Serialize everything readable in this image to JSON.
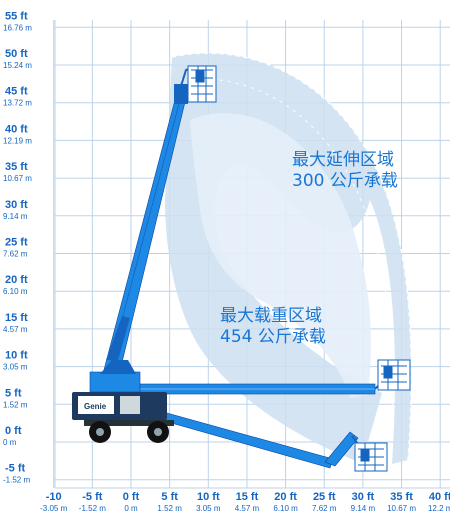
{
  "y_labels": [
    {
      "ft": "55 ft",
      "m": "16.76 m",
      "value": 55
    },
    {
      "ft": "50 ft",
      "m": "15.24 m",
      "value": 50
    },
    {
      "ft": "45 ft",
      "m": "13.72 m",
      "value": 45
    },
    {
      "ft": "40 ft",
      "m": "12.19 m",
      "value": 40
    },
    {
      "ft": "35 ft",
      "m": "10.67 m",
      "value": 35
    },
    {
      "ft": "30 ft",
      "m": "9.14 m",
      "value": 30
    },
    {
      "ft": "25 ft",
      "m": "7.62 m",
      "value": 25
    },
    {
      "ft": "20 ft",
      "m": "6.10 m",
      "value": 20
    },
    {
      "ft": "15 ft",
      "m": "4.57 m",
      "value": 15
    },
    {
      "ft": "10 ft",
      "m": "3.05 m",
      "value": 10
    },
    {
      "ft": "5 ft",
      "m": "1.52 m",
      "value": 5
    },
    {
      "ft": "0 ft",
      "m": "0 m",
      "value": 0
    },
    {
      "ft": "-5 ft",
      "m": "-1.52 m",
      "value": -5
    }
  ],
  "x_labels": [
    {
      "ft": "-10",
      "m": "-3.05 m",
      "value": -10
    },
    {
      "ft": "-5 ft",
      "m": "-1.52 m",
      "value": -5
    },
    {
      "ft": "0 ft",
      "m": "0 m",
      "value": 0
    },
    {
      "ft": "5 ft",
      "m": "1.52 m",
      "value": 5
    },
    {
      "ft": "10 ft",
      "m": "3.05 m",
      "value": 10
    },
    {
      "ft": "15 ft",
      "m": "4.57 m",
      "value": 15
    },
    {
      "ft": "20 ft",
      "m": "6.10 m",
      "value": 20
    },
    {
      "ft": "25 ft",
      "m": "7.62 m",
      "value": 25
    },
    {
      "ft": "30 ft",
      "m": "9.14 m",
      "value": 30
    },
    {
      "ft": "35 ft",
      "m": "10.67 m",
      "value": 35
    },
    {
      "ft": "40 ft",
      "m": "12.2 m",
      "value": 40
    }
  ],
  "zones": {
    "extended": {
      "line1": "最大延伸区域",
      "line2": "300 公斤承载"
    },
    "max_load": {
      "line1": "最大载重区域",
      "line2": "454 公斤承载"
    }
  },
  "brand_text": "Genie",
  "colors": {
    "label_blue": "#1565c0",
    "boom_blue": "#1e88e5",
    "envelope_light": "#e3eef9",
    "envelope_mid": "#c4d9ef",
    "grid": "#bcd3ea"
  }
}
